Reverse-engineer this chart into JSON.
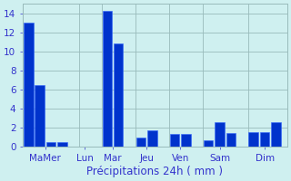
{
  "groups": [
    {
      "label": "Ma​Mer",
      "values": [
        13.0,
        6.5,
        0.5,
        0.5
      ]
    },
    {
      "label": "Lun",
      "values": [
        0.0
      ]
    },
    {
      "label": "Mar",
      "values": [
        14.3,
        10.8
      ]
    },
    {
      "label": "Jeu",
      "values": [
        1.0,
        1.7
      ]
    },
    {
      "label": "Ven",
      "values": [
        1.4,
        1.4
      ]
    },
    {
      "label": "Sam",
      "values": [
        0.7,
        2.6,
        1.5
      ]
    },
    {
      "label": "Dim",
      "values": [
        1.6,
        1.6,
        2.6
      ]
    }
  ],
  "xlabel": "Précipitations 24h ( mm )",
  "ylim": [
    0,
    15
  ],
  "yticks": [
    0,
    2,
    4,
    6,
    8,
    10,
    12,
    14
  ],
  "bar_color": "#0033cc",
  "background_color": "#cff0f0",
  "grid_color": "#99bbbb",
  "text_color": "#3333cc",
  "xlabel_fontsize": 8.5,
  "tick_fontsize": 7.5
}
